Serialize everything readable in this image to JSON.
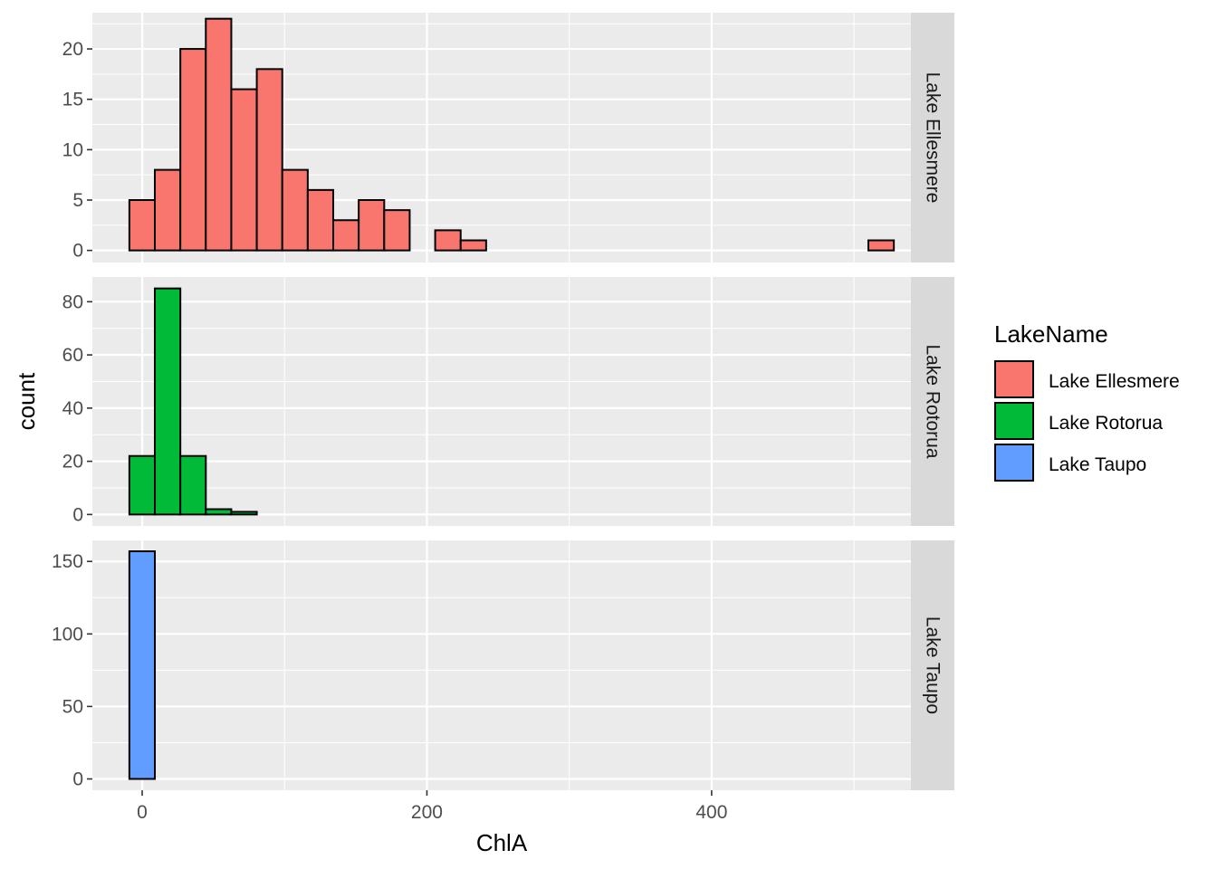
{
  "chart_data": {
    "type": "bar",
    "subtype": "faceted-histogram",
    "xlabel": "ChlA",
    "ylabel": "count",
    "bin_width": 17.9,
    "bin_start": -9,
    "x_ticks": [
      0,
      200,
      400
    ],
    "xlim": [
      -35,
      540
    ],
    "legend": {
      "title": "LakeName",
      "placement": "right",
      "entries": [
        {
          "label": "Lake Ellesmere",
          "color": "#F8766D"
        },
        {
          "label": "Lake Rotorua",
          "color": "#00BA38"
        },
        {
          "label": "Lake Taupo",
          "color": "#619CFF"
        }
      ]
    },
    "panels": [
      {
        "strip_label": "Lake Ellesmere",
        "color": "#F8766D",
        "ylim": [
          -1.2,
          23.6
        ],
        "y_ticks": [
          0,
          5,
          10,
          15,
          20
        ],
        "counts": [
          5,
          8,
          20,
          23,
          16,
          18,
          8,
          6,
          3,
          5,
          4,
          0,
          2,
          1,
          0,
          0,
          0,
          0,
          0,
          0,
          0,
          0,
          0,
          0,
          0,
          0,
          0,
          0,
          0,
          1
        ]
      },
      {
        "strip_label": "Lake Rotorua",
        "color": "#00BA38",
        "ylim": [
          -4.3,
          89.3
        ],
        "y_ticks": [
          0,
          20,
          40,
          60,
          80
        ],
        "counts": [
          22,
          85,
          22,
          2,
          1,
          0,
          0,
          0,
          0,
          0,
          0,
          0,
          0,
          0,
          0,
          0,
          0,
          0,
          0,
          0,
          0,
          0,
          0,
          0,
          0,
          0,
          0,
          0,
          0,
          0
        ]
      },
      {
        "strip_label": "Lake Taupo",
        "color": "#619CFF",
        "ylim": [
          -7.8,
          164.5
        ],
        "y_ticks": [
          0,
          50,
          100,
          150
        ],
        "counts": [
          157,
          0,
          0,
          0,
          0,
          0,
          0,
          0,
          0,
          0,
          0,
          0,
          0,
          0,
          0,
          0,
          0,
          0,
          0,
          0,
          0,
          0,
          0,
          0,
          0,
          0,
          0,
          0,
          0,
          0
        ]
      }
    ],
    "grid": true
  }
}
